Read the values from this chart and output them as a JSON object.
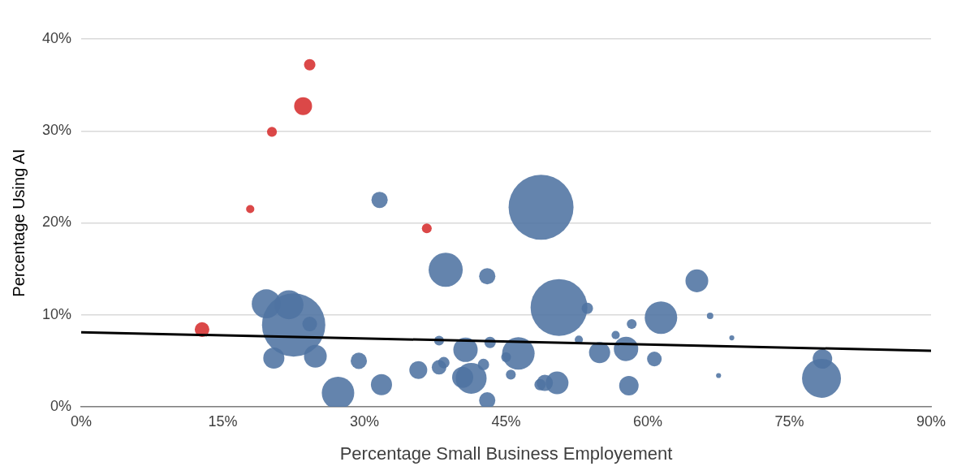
{
  "chart_data": {
    "type": "bubble",
    "xlabel": "Percentage Small Business Employement",
    "ylabel": "Percentage Using AI",
    "xlim": [
      0,
      90
    ],
    "xticks": [
      {
        "value": 0,
        "label": "0%"
      },
      {
        "value": 15,
        "label": "15%"
      },
      {
        "value": 30,
        "label": "30%"
      },
      {
        "value": 45,
        "label": "45%"
      },
      {
        "value": 60,
        "label": "60%"
      },
      {
        "value": 75,
        "label": "75%"
      },
      {
        "value": 90,
        "label": "90%"
      }
    ],
    "ylim": [
      0,
      40
    ],
    "yticks": [
      {
        "value": 0,
        "label": "0%"
      },
      {
        "value": 10,
        "label": "10%"
      },
      {
        "value": 20,
        "label": "20%"
      },
      {
        "value": 30,
        "label": "30%"
      },
      {
        "value": 40,
        "label": "40%"
      }
    ],
    "grid": "y",
    "legend": false,
    "series": [
      {
        "type": "bubble",
        "color": "#d62f2f",
        "x": [
          24.2,
          23.5,
          20.2,
          17.9,
          36.6,
          12.8
        ],
        "values": [
          37.2,
          32.7,
          29.9,
          21.5,
          19.4,
          8.4
        ],
        "sizes": [
          0.031,
          0.076,
          0.023,
          0.016,
          0.023,
          0.051
        ]
      },
      {
        "type": "bubble",
        "color": "#4f73a2",
        "x": [
          31.6,
          48.7,
          38.6,
          43.0,
          65.2,
          19.6,
          22.0,
          22.5,
          24.2,
          50.6,
          53.6,
          61.4,
          66.6,
          68.9,
          58.3,
          56.6,
          20.4,
          24.8,
          29.4,
          27.2,
          31.8,
          35.7,
          37.9,
          37.9,
          38.4,
          40.7,
          40.4,
          41.3,
          42.6,
          43.3,
          43.0,
          45.0,
          46.3,
          45.5,
          48.6,
          49.1,
          50.4,
          52.7,
          54.9,
          57.7,
          58.0,
          60.7,
          67.5,
          78.5,
          78.4
        ],
        "values": [
          22.5,
          21.7,
          14.9,
          14.2,
          13.7,
          11.2,
          11.1,
          8.9,
          9.0,
          10.8,
          10.7,
          9.7,
          9.9,
          7.5,
          9.0,
          7.8,
          5.3,
          5.5,
          5.0,
          1.5,
          2.4,
          4.0,
          7.2,
          4.3,
          4.8,
          6.2,
          3.2,
          3.1,
          4.6,
          7.0,
          0.7,
          5.4,
          5.8,
          3.5,
          2.4,
          2.6,
          2.6,
          7.3,
          5.9,
          6.3,
          2.3,
          5.2,
          3.4,
          5.2,
          3.1
        ],
        "sizes": [
          0.063,
          1,
          0.276,
          0.063,
          0.123,
          0.2,
          0.2,
          0.951,
          0.051,
          0.766,
          0.031,
          0.25,
          0.01,
          0.006,
          0.023,
          0.016,
          0.106,
          0.123,
          0.063,
          0.25,
          0.106,
          0.076,
          0.023,
          0.051,
          0.031,
          0.141,
          0.106,
          0.226,
          0.031,
          0.031,
          0.063,
          0.023,
          0.25,
          0.023,
          0.031,
          0.063,
          0.123,
          0.016,
          0.106,
          0.141,
          0.09,
          0.051,
          0.006,
          0.09,
          0.36
        ]
      },
      {
        "type": "line",
        "color": "#000000",
        "x": [
          0,
          90
        ],
        "values": [
          8.1,
          6.1
        ]
      }
    ]
  }
}
